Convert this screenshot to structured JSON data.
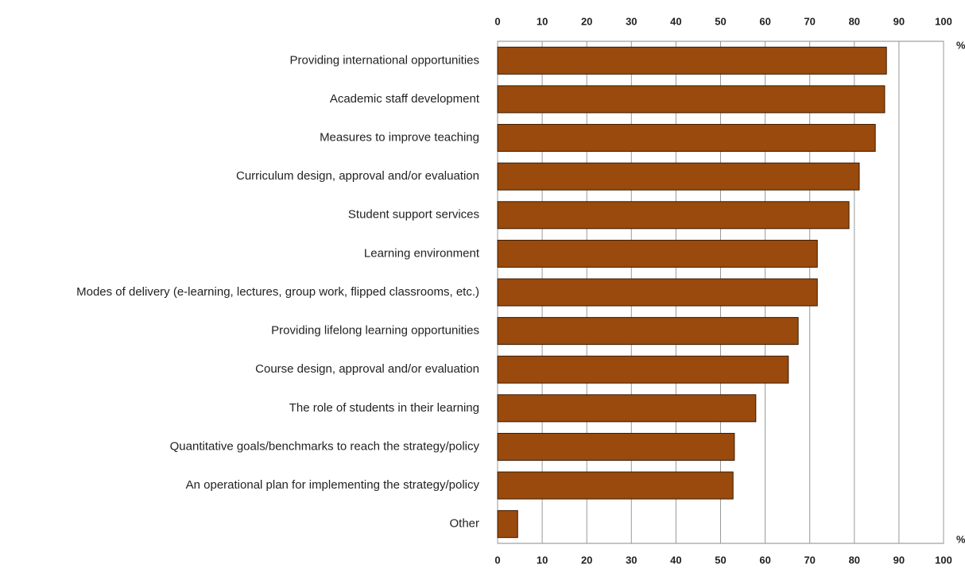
{
  "chart_data": {
    "type": "barh",
    "categories": [
      "Providing international opportunities",
      "Academic staff development",
      "Measures to improve teaching",
      "Curriculum design, approval and/or evaluation",
      "Student support services",
      "Learning environment",
      "Modes of delivery (e-learning, lectures, group work, flipped classrooms, etc.)",
      "Providing lifelong learning opportunities",
      "Course  design, approval and/or evaluation",
      "The role of students in their learning",
      "Quantitative goals/benchmarks to reach the strategy/policy",
      "An operational plan for implementing the strategy/policy",
      "Other"
    ],
    "values": [
      87.2,
      86.8,
      84.7,
      81.1,
      78.8,
      71.7,
      71.7,
      67.4,
      65.2,
      57.9,
      53.1,
      52.8,
      4.5
    ],
    "color": "#994a0c",
    "xlim": [
      0,
      100
    ],
    "xticks": [
      0,
      10,
      20,
      30,
      40,
      50,
      60,
      70,
      80,
      90,
      100
    ],
    "x_unit": "%",
    "grid": true
  }
}
